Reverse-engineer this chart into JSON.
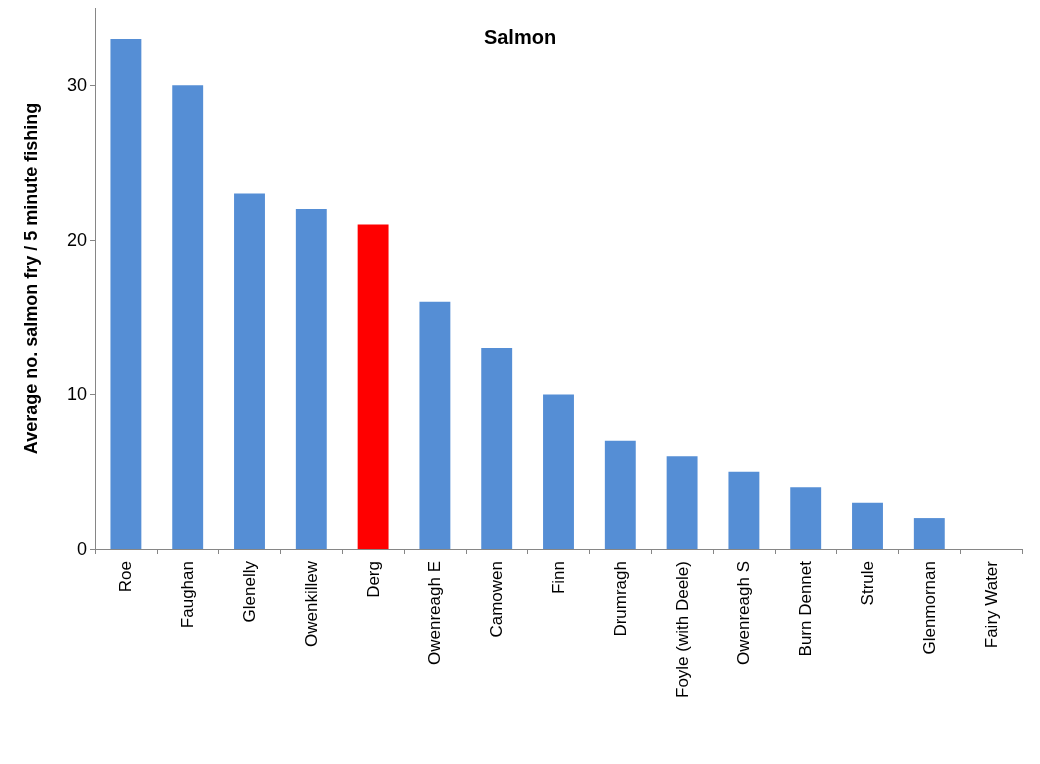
{
  "chart_data": {
    "type": "bar",
    "title": "Salmon",
    "ylabel": "Average no. salmon fry / 5 minute fishing",
    "categories": [
      "Roe",
      "Faughan",
      "Glenelly",
      "Owenkillew",
      "Derg",
      "Owenreagh E",
      "Camowen",
      "Finn",
      "Drumragh",
      "Foyle (with Deele)",
      "Owenreagh S",
      "Burn Dennet",
      "Strule",
      "Glenmornan",
      "Fairy Water"
    ],
    "values": [
      33,
      30,
      23,
      22,
      21,
      16,
      13,
      10,
      7,
      6,
      5,
      4,
      3,
      2,
      0
    ],
    "colors": [
      "#558ed5",
      "#558ed5",
      "#558ed5",
      "#558ed5",
      "#ff0000",
      "#558ed5",
      "#558ed5",
      "#558ed5",
      "#558ed5",
      "#558ed5",
      "#558ed5",
      "#558ed5",
      "#558ed5",
      "#558ed5",
      "#558ed5"
    ],
    "ylim": [
      0,
      35
    ],
    "yticks": [
      0,
      10,
      20,
      30
    ],
    "grid": false
  }
}
